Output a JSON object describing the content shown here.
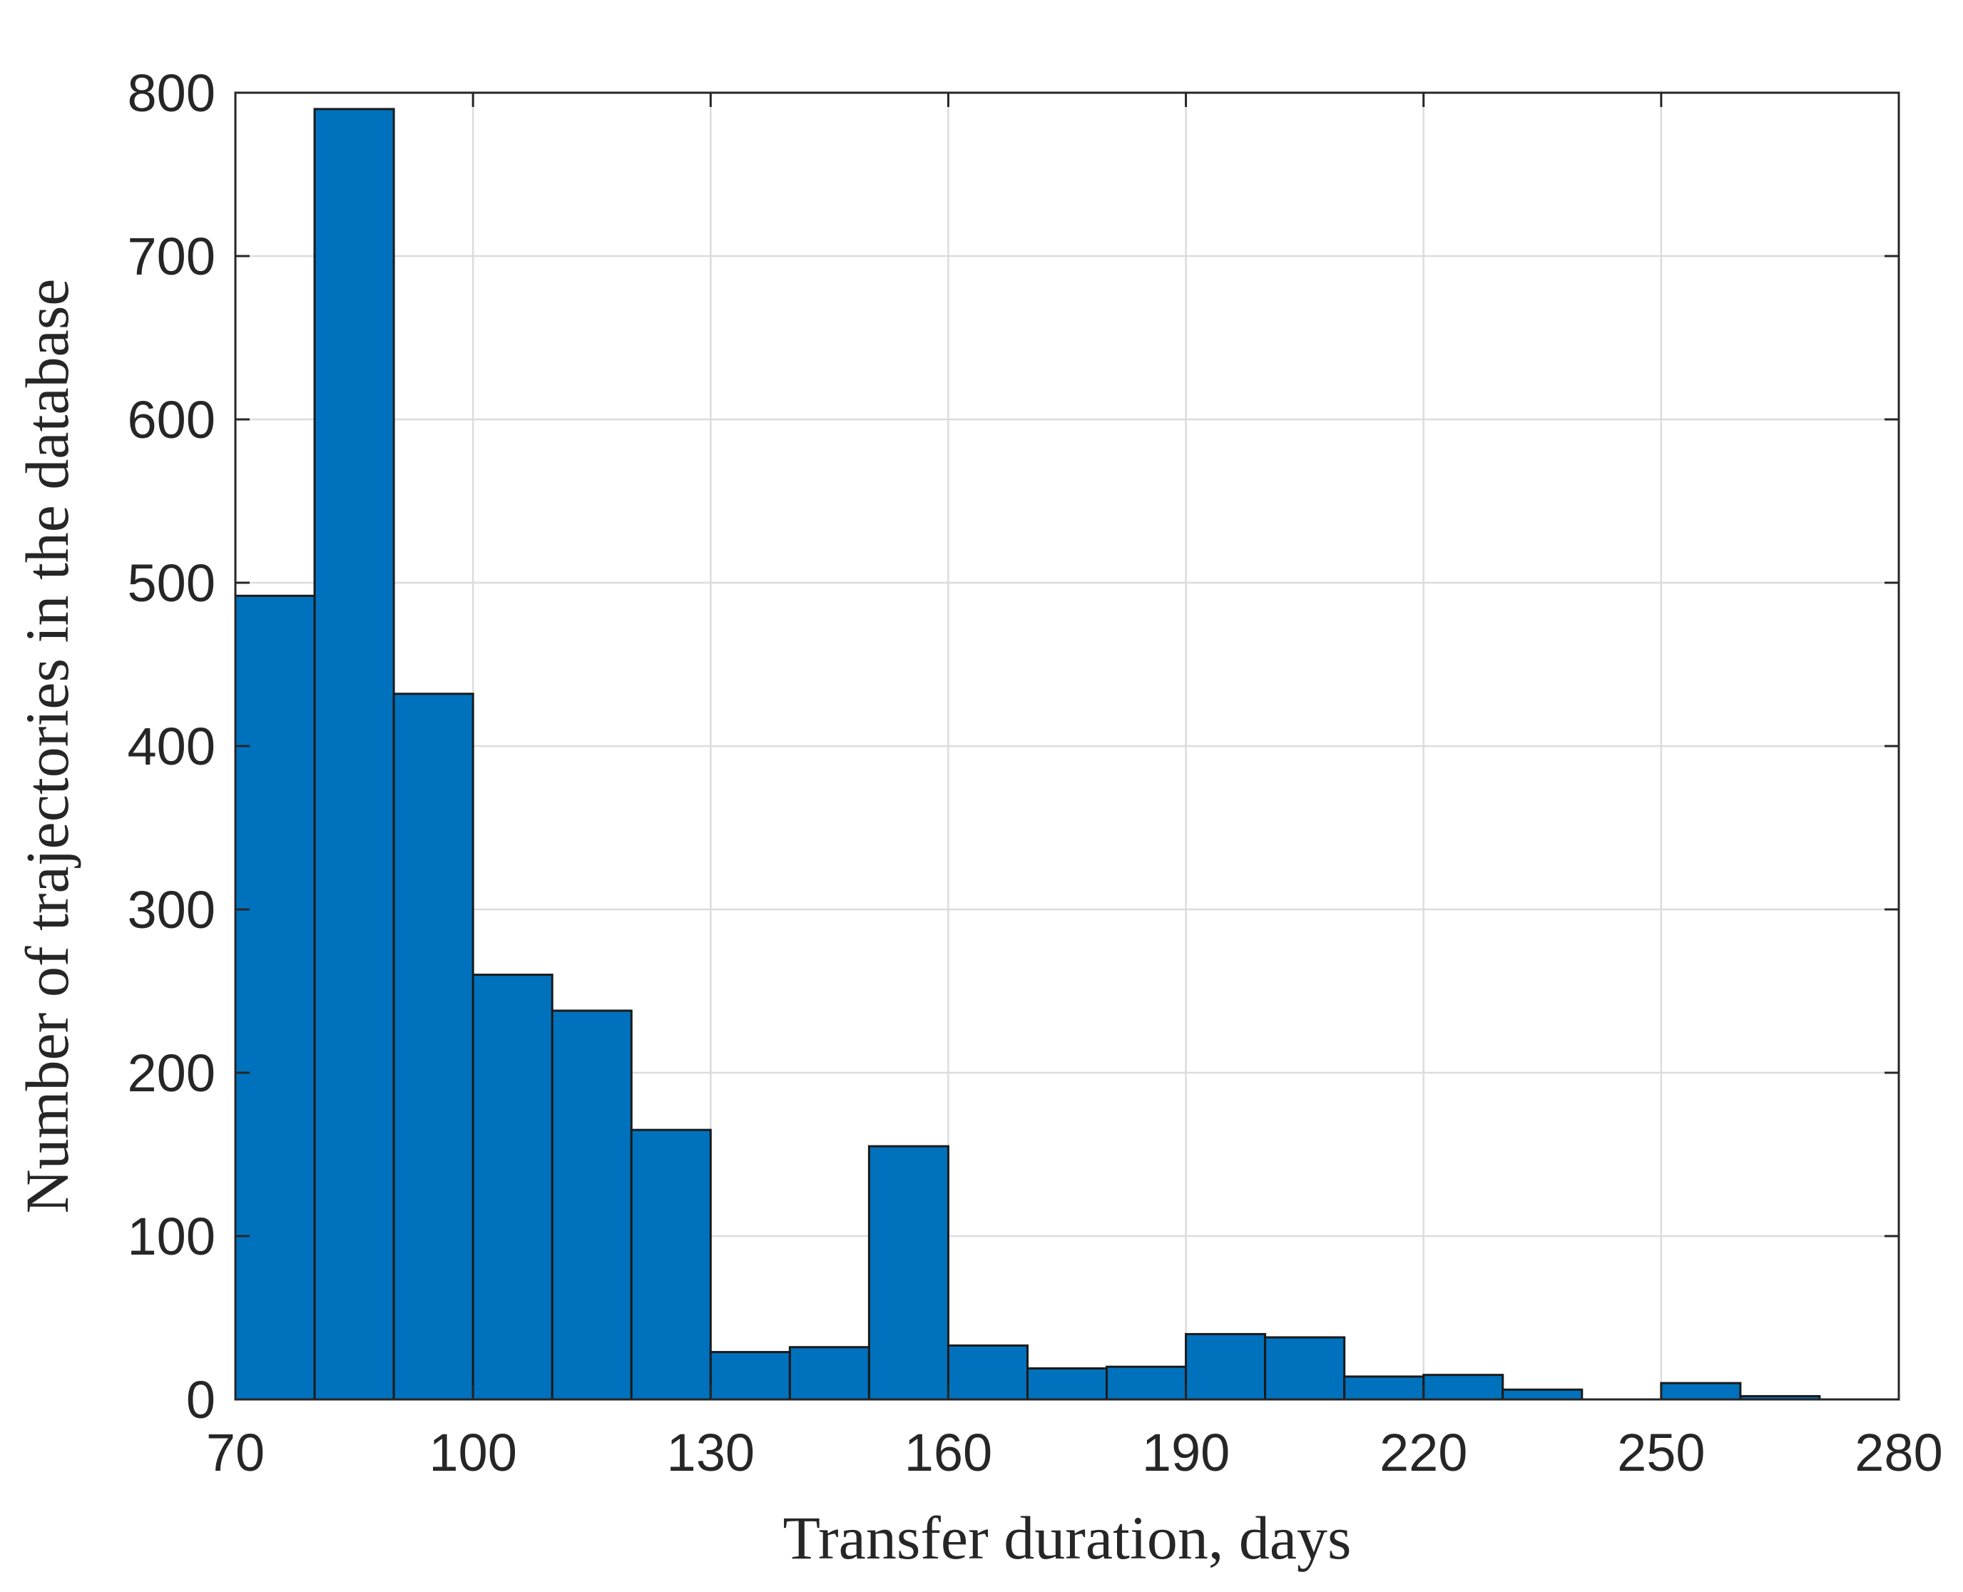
{
  "chart_data": {
    "type": "bar",
    "subtype": "histogram",
    "title": "",
    "xlabel": "Transfer duration, days",
    "ylabel": "Number of trajectories in the database",
    "xlim": [
      70,
      280
    ],
    "ylim": [
      0,
      800
    ],
    "xticks": [
      70,
      100,
      130,
      160,
      190,
      220,
      250,
      280
    ],
    "yticks": [
      0,
      100,
      200,
      300,
      400,
      500,
      600,
      700,
      800
    ],
    "xtick_labels": [
      "70",
      "100",
      "130",
      "160",
      "190",
      "220",
      "250",
      "280"
    ],
    "ytick_labels": [
      "0",
      "100",
      "200",
      "300",
      "400",
      "500",
      "600",
      "700",
      "800"
    ],
    "grid": true,
    "bar_color": "#0072BD",
    "bar_edge_color": "#1a1a1a",
    "bin_width": 10,
    "bins": [
      {
        "x0": 70,
        "x1": 80,
        "count": 492
      },
      {
        "x0": 80,
        "x1": 90,
        "count": 790
      },
      {
        "x0": 90,
        "x1": 100,
        "count": 432
      },
      {
        "x0": 100,
        "x1": 110,
        "count": 260
      },
      {
        "x0": 110,
        "x1": 120,
        "count": 238
      },
      {
        "x0": 120,
        "x1": 130,
        "count": 165
      },
      {
        "x0": 130,
        "x1": 140,
        "count": 29
      },
      {
        "x0": 140,
        "x1": 150,
        "count": 32
      },
      {
        "x0": 150,
        "x1": 160,
        "count": 155
      },
      {
        "x0": 160,
        "x1": 170,
        "count": 33
      },
      {
        "x0": 170,
        "x1": 180,
        "count": 19
      },
      {
        "x0": 180,
        "x1": 190,
        "count": 20
      },
      {
        "x0": 190,
        "x1": 200,
        "count": 40
      },
      {
        "x0": 200,
        "x1": 210,
        "count": 38
      },
      {
        "x0": 210,
        "x1": 220,
        "count": 14
      },
      {
        "x0": 220,
        "x1": 230,
        "count": 15
      },
      {
        "x0": 230,
        "x1": 240,
        "count": 6
      },
      {
        "x0": 240,
        "x1": 250,
        "count": 0
      },
      {
        "x0": 250,
        "x1": 260,
        "count": 10
      },
      {
        "x0": 260,
        "x1": 270,
        "count": 2
      }
    ]
  }
}
